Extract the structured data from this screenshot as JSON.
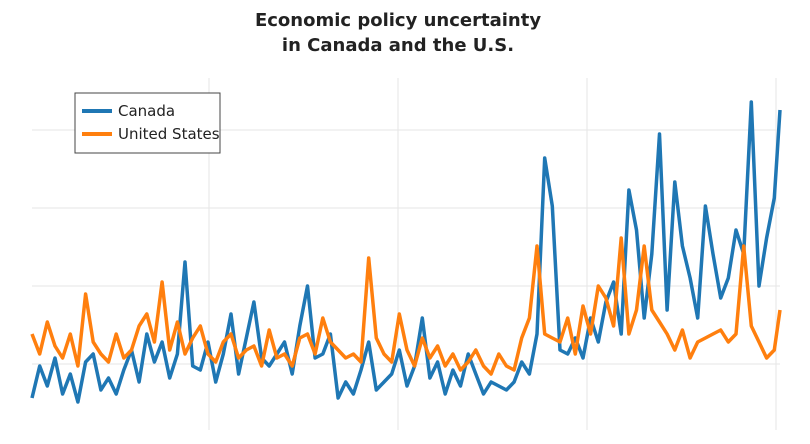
{
  "chart_data": {
    "type": "line",
    "title": [
      "Economic policy uncertainty",
      "in Canada and the U.S."
    ],
    "xlabel": "",
    "ylabel": "",
    "x_range": [
      0,
      391
    ],
    "ylim": [
      0,
      440
    ],
    "grid": {
      "x": true,
      "y": true
    },
    "legend": {
      "placement": "top-left"
    },
    "colors": {
      "Canada": "#1f77b4",
      "United States": "#ff7f0e"
    },
    "series": [
      {
        "name": "Canada",
        "x": [
          0,
          4,
          8,
          12,
          16,
          20,
          24,
          28,
          32,
          36,
          40,
          44,
          48,
          52,
          56,
          60,
          64,
          68,
          72,
          76,
          80,
          84,
          88,
          92,
          96,
          100,
          104,
          108,
          112,
          116,
          120,
          124,
          128,
          132,
          136,
          140,
          144,
          148,
          152,
          156,
          160,
          164,
          168,
          172,
          176,
          180,
          184,
          188,
          192,
          196,
          200,
          204,
          208,
          212,
          216,
          220,
          224,
          228,
          232,
          236,
          240,
          244,
          248,
          252,
          256,
          260,
          264,
          268,
          272,
          276,
          280,
          284,
          288,
          292,
          296,
          300,
          304,
          308,
          312,
          316,
          320,
          324,
          328,
          332,
          336,
          340,
          344,
          348,
          352,
          356,
          360,
          364,
          368,
          372,
          376,
          380,
          384,
          388,
          391
        ],
        "values": [
          40,
          80,
          55,
          90,
          45,
          70,
          35,
          85,
          95,
          50,
          65,
          45,
          75,
          100,
          60,
          120,
          85,
          110,
          65,
          95,
          210,
          80,
          75,
          110,
          60,
          95,
          145,
          70,
          115,
          160,
          90,
          80,
          95,
          110,
          70,
          130,
          180,
          90,
          95,
          120,
          40,
          60,
          45,
          75,
          110,
          50,
          60,
          70,
          100,
          55,
          80,
          140,
          65,
          85,
          45,
          75,
          55,
          95,
          70,
          45,
          60,
          55,
          50,
          60,
          85,
          70,
          120,
          340,
          280,
          100,
          95,
          115,
          90,
          140,
          110,
          160,
          185,
          120,
          300,
          250,
          140,
          220,
          370,
          150,
          310,
          230,
          190,
          140,
          280,
          220,
          165,
          190,
          250,
          220,
          410,
          180,
          240,
          290,
          400
        ]
      },
      {
        "name": "United States",
        "x": [
          0,
          4,
          8,
          12,
          16,
          20,
          24,
          28,
          32,
          36,
          40,
          44,
          48,
          52,
          56,
          60,
          64,
          68,
          72,
          76,
          80,
          84,
          88,
          92,
          96,
          100,
          104,
          108,
          112,
          116,
          120,
          124,
          128,
          132,
          136,
          140,
          144,
          148,
          152,
          156,
          160,
          164,
          168,
          172,
          176,
          180,
          184,
          188,
          192,
          196,
          200,
          204,
          208,
          212,
          216,
          220,
          224,
          228,
          232,
          236,
          240,
          244,
          248,
          252,
          256,
          260,
          264,
          268,
          272,
          276,
          280,
          284,
          288,
          292,
          296,
          300,
          304,
          308,
          312,
          316,
          320,
          324,
          328,
          332,
          336,
          340,
          344,
          348,
          352,
          356,
          360,
          364,
          368,
          372,
          376,
          380,
          384,
          388,
          391
        ],
        "values": [
          120,
          95,
          135,
          105,
          90,
          120,
          80,
          170,
          110,
          95,
          85,
          120,
          90,
          100,
          130,
          145,
          110,
          185,
          100,
          135,
          95,
          115,
          130,
          95,
          85,
          110,
          120,
          90,
          100,
          105,
          80,
          125,
          90,
          95,
          80,
          115,
          120,
          95,
          140,
          110,
          100,
          90,
          95,
          85,
          215,
          115,
          95,
          85,
          145,
          100,
          80,
          115,
          90,
          105,
          80,
          95,
          75,
          85,
          100,
          80,
          70,
          95,
          80,
          75,
          115,
          140,
          230,
          120,
          115,
          110,
          140,
          95,
          155,
          120,
          180,
          165,
          130,
          240,
          120,
          150,
          230,
          150,
          135,
          120,
          100,
          125,
          90,
          110,
          115,
          120,
          125,
          110,
          120,
          230,
          130,
          110,
          90,
          100,
          150
        ]
      }
    ]
  },
  "legend_labels": [
    "Canada",
    "United States"
  ]
}
